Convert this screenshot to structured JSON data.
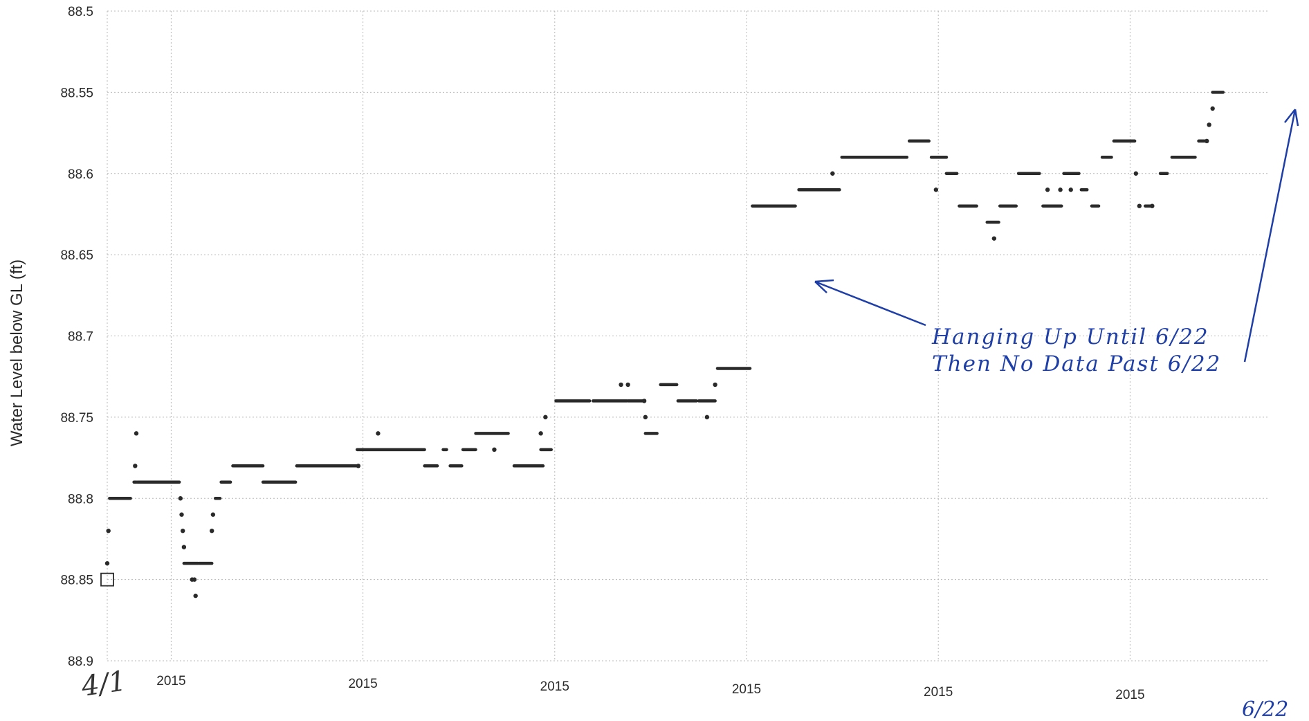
{
  "chart_data": {
    "type": "scatter",
    "title": "",
    "xlabel": "",
    "ylabel": "Water Level below GL (ft)",
    "y_axis": "inverted",
    "ylim": [
      88.5,
      88.9
    ],
    "y_ticks": [
      "88.5",
      "88.55",
      "88.6",
      "88.65",
      "88.7",
      "88.75",
      "88.8",
      "88.85",
      "88.9"
    ],
    "xlim": [
      0,
      100
    ],
    "x_ticks": [
      {
        "x": 5.5,
        "label": "2015"
      },
      {
        "x": 22,
        "label": "2015"
      },
      {
        "x": 38.5,
        "label": "2015"
      },
      {
        "x": 55,
        "label": "2015"
      },
      {
        "x": 71.5,
        "label": "2015"
      },
      {
        "x": 88,
        "label": "2015"
      }
    ],
    "grid": true,
    "marker_square": [
      0,
      88.85
    ],
    "series": [
      {
        "segments": [
          [
            0.2,
            2.0,
            88.8
          ],
          [
            2.3,
            2.5,
            88.79
          ],
          [
            2.6,
            6.2,
            88.79
          ],
          [
            6.6,
            7.8,
            88.84
          ],
          [
            7.9,
            9.0,
            88.84
          ],
          [
            9.3,
            9.7,
            88.8
          ],
          [
            9.8,
            10.6,
            88.79
          ],
          [
            10.8,
            13.4,
            88.78
          ],
          [
            13.4,
            16.2,
            88.79
          ],
          [
            16.3,
            21.5,
            88.78
          ],
          [
            21.5,
            27.3,
            88.77
          ],
          [
            27.3,
            28.4,
            88.78
          ],
          [
            28.9,
            29.2,
            88.77
          ],
          [
            29.5,
            30.5,
            88.78
          ],
          [
            30.6,
            31.7,
            88.77
          ],
          [
            31.7,
            34.5,
            88.76
          ],
          [
            35.0,
            37.5,
            88.78
          ],
          [
            37.3,
            38.2,
            88.77
          ],
          [
            38.6,
            41.5,
            88.74
          ],
          [
            41.8,
            44.7,
            88.74
          ],
          [
            44.8,
            46.2,
            88.74
          ],
          [
            46.3,
            47.3,
            88.76
          ],
          [
            47.6,
            49.0,
            88.73
          ],
          [
            49.1,
            50.7,
            88.74
          ],
          [
            50.9,
            52.3,
            88.74
          ],
          [
            52.5,
            55.3,
            88.72
          ],
          [
            55.5,
            59.2,
            88.62
          ],
          [
            59.5,
            63.0,
            88.61
          ],
          [
            63.2,
            68.8,
            88.59
          ],
          [
            69.0,
            70.7,
            88.58
          ],
          [
            70.9,
            72.2,
            88.59
          ],
          [
            72.2,
            73.1,
            88.6
          ],
          [
            73.3,
            74.8,
            88.62
          ],
          [
            75.7,
            76.7,
            88.63
          ],
          [
            76.8,
            78.2,
            88.62
          ],
          [
            78.4,
            80.2,
            88.6
          ],
          [
            80.5,
            82.1,
            88.62
          ],
          [
            82.3,
            83.6,
            88.6
          ],
          [
            83.8,
            84.3,
            88.61
          ],
          [
            84.7,
            85.3,
            88.62
          ],
          [
            85.6,
            86.4,
            88.59
          ],
          [
            86.6,
            88.4,
            88.58
          ],
          [
            89.3,
            89.9,
            88.62
          ],
          [
            90.6,
            91.2,
            88.6
          ],
          [
            91.6,
            93.6,
            88.59
          ],
          [
            93.9,
            94.4,
            88.58
          ],
          [
            95.1,
            96.0,
            88.55
          ]
        ],
        "points": [
          [
            0.0,
            88.84
          ],
          [
            0.1,
            88.82
          ],
          [
            2.4,
            88.78
          ],
          [
            2.5,
            88.76
          ],
          [
            6.3,
            88.8
          ],
          [
            6.4,
            88.81
          ],
          [
            6.5,
            88.82
          ],
          [
            6.6,
            88.83
          ],
          [
            7.3,
            88.85
          ],
          [
            7.5,
            88.85
          ],
          [
            7.6,
            88.86
          ],
          [
            9.0,
            88.82
          ],
          [
            9.1,
            88.81
          ],
          [
            21.6,
            88.78
          ],
          [
            23.3,
            88.76
          ],
          [
            33.3,
            88.77
          ],
          [
            37.3,
            88.76
          ],
          [
            37.7,
            88.75
          ],
          [
            44.2,
            88.73
          ],
          [
            44.8,
            88.73
          ],
          [
            46.2,
            88.74
          ],
          [
            46.3,
            88.75
          ],
          [
            51.6,
            88.75
          ],
          [
            52.3,
            88.73
          ],
          [
            62.4,
            88.6
          ],
          [
            71.3,
            88.61
          ],
          [
            76.3,
            88.64
          ],
          [
            80.9,
            88.61
          ],
          [
            82.0,
            88.61
          ],
          [
            82.9,
            88.61
          ],
          [
            88.5,
            88.6
          ],
          [
            88.8,
            88.62
          ],
          [
            89.9,
            88.62
          ],
          [
            94.6,
            88.58
          ],
          [
            94.8,
            88.57
          ],
          [
            95.1,
            88.56
          ]
        ]
      }
    ],
    "annotations": {
      "handwritten_lines": [
        "Hanging Up Until 6/22",
        "Then No Data Past 6/22"
      ],
      "start_mark": "4/1",
      "end_mark": "6/22"
    }
  },
  "colors": {
    "background": "#ffffff",
    "grid": "#b8b8b8",
    "data": "#2a2a2a",
    "annotation": "#1f3fa8"
  }
}
